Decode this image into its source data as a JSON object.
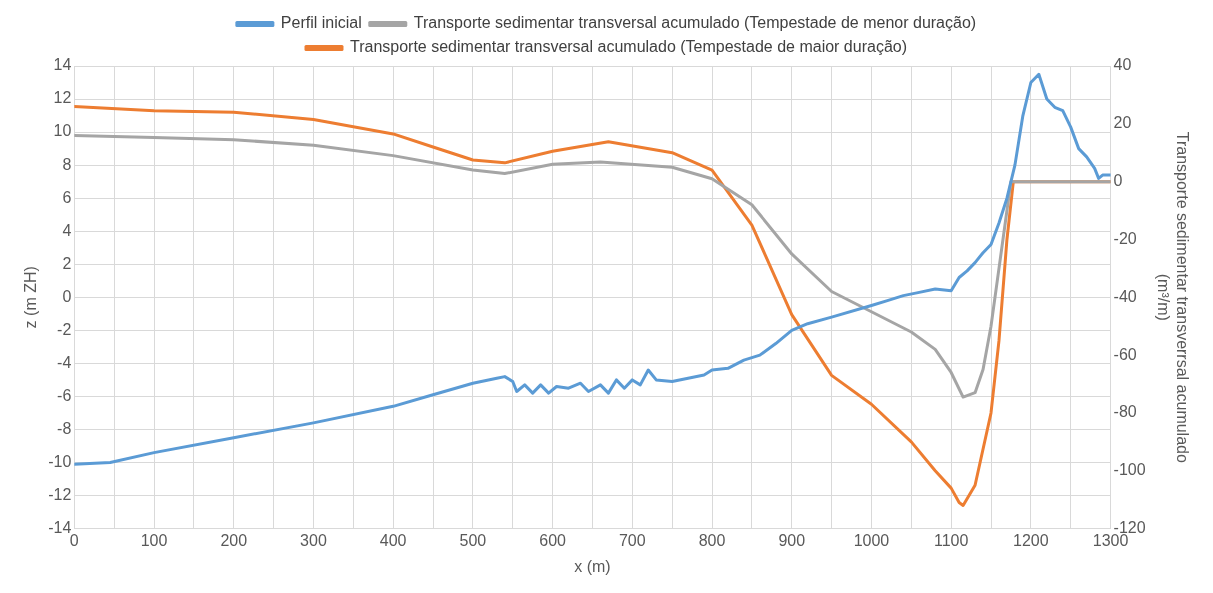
{
  "chart_data": {
    "type": "line",
    "xlabel": "x (m)",
    "ylabel": "z (m ZH)",
    "y2label": "Transporte sedimentar transverrsal acumulado (m³/m)",
    "xlim": [
      0,
      1300
    ],
    "xticks": [
      0,
      {
        "value": 50,
        "label": null
      },
      100,
      {
        "value": 150,
        "label": null
      },
      200,
      {
        "value": 250,
        "label": null
      },
      300,
      {
        "value": 350,
        "label": null
      },
      400,
      {
        "value": 450,
        "label": null
      },
      500,
      {
        "value": 550,
        "label": null
      },
      600,
      {
        "value": 650,
        "label": null
      },
      700,
      {
        "value": 750,
        "label": null
      },
      800,
      {
        "value": 850,
        "label": null
      },
      900,
      {
        "value": 950,
        "label": null
      },
      1000,
      {
        "value": 1050,
        "label": null
      },
      1100,
      {
        "value": 1150,
        "label": null
      },
      1200,
      {
        "value": 1250,
        "label": null
      },
      1300
    ],
    "ylim": [
      -14,
      14
    ],
    "yticks": [
      -14,
      -12,
      -10,
      -8,
      -6,
      -4,
      -2,
      0,
      2,
      4,
      6,
      8,
      10,
      12,
      14
    ],
    "y2lim": [
      -120,
      40
    ],
    "y2ticks": [
      -120,
      -100,
      -80,
      -60,
      -40,
      -20,
      0,
      20,
      40
    ],
    "grid": true,
    "legend": "top",
    "marker": "none",
    "line_style": "solid",
    "series": [
      {
        "name": "Perfil inicial",
        "color": "#5b9bd5",
        "x": [
          0,
          45,
          100,
          200,
          300,
          400,
          450,
          500,
          530,
          540,
          550,
          555,
          565,
          575,
          585,
          595,
          605,
          620,
          635,
          645,
          660,
          670,
          680,
          690,
          700,
          710,
          720,
          730,
          750,
          770,
          790,
          800,
          820,
          840,
          860,
          880,
          900,
          920,
          950,
          1000,
          1020,
          1040,
          1060,
          1080,
          1100,
          1110,
          1120,
          1130,
          1140,
          1150,
          1160,
          1170,
          1180,
          1190,
          1200,
          1210,
          1220,
          1230,
          1240,
          1250,
          1260,
          1270,
          1280,
          1285,
          1290,
          1300
        ],
        "values": [
          -10.1,
          -10,
          -9.4,
          -8.5,
          -7.6,
          -6.6,
          -5.9,
          -5.2,
          -4.9,
          -4.8,
          -5.1,
          -5.7,
          -5.3,
          -5.8,
          -5.3,
          -5.8,
          -5.4,
          -5.5,
          -5.2,
          -5.7,
          -5.3,
          -5.8,
          -5,
          -5.5,
          -5,
          -5.3,
          -4.4,
          -5,
          -5.1,
          -4.9,
          -4.7,
          -4.4,
          -4.3,
          -3.8,
          -3.5,
          -2.8,
          -2,
          -1.6,
          -1.2,
          -0.5,
          -0.2,
          0.1,
          0.3,
          0.5,
          0.4,
          1.2,
          1.6,
          2.1,
          2.7,
          3.2,
          4.5,
          6,
          8,
          11,
          13,
          13.5,
          12,
          11.5,
          11.3,
          10.3,
          9,
          8.5,
          7.8,
          7.2,
          7.4,
          7.4
        ]
      },
      {
        "name": "Transporte sedimentar transversal acumulado (Tempestade de menor duração)",
        "color": "#a5a5a5",
        "axis": "y2",
        "x": [
          0,
          100,
          200,
          300,
          400,
          500,
          540,
          600,
          660,
          750,
          800,
          850,
          900,
          950,
          1000,
          1050,
          1080,
          1100,
          1115,
          1130,
          1140,
          1150,
          1160,
          1170,
          1175,
          1300
        ],
        "values": [
          16,
          15.3,
          14.5,
          12.6,
          9,
          4,
          2.8,
          6,
          6.8,
          5,
          1,
          -8,
          -25,
          -38,
          -45,
          -52,
          -58,
          -66,
          -74.5,
          -73,
          -65,
          -50,
          -30,
          -10,
          0,
          0
        ]
      },
      {
        "name": "Transporte sedimentar transversal acumulado (Tempestade de maior duração)",
        "color": "#ed7d31",
        "axis": "y2",
        "x": [
          0,
          100,
          200,
          300,
          400,
          450,
          500,
          540,
          600,
          670,
          750,
          800,
          850,
          900,
          950,
          1000,
          1050,
          1080,
          1100,
          1110,
          1115,
          1130,
          1150,
          1160,
          1170,
          1178,
          1300
        ],
        "values": [
          26,
          24.5,
          24,
          21.5,
          16.5,
          12,
          7.5,
          6.5,
          10.5,
          13.8,
          10,
          4,
          -15,
          -46,
          -67,
          -77,
          -90,
          -100,
          -106,
          -111,
          -112,
          -105,
          -80,
          -55,
          -20,
          0,
          0
        ]
      }
    ]
  }
}
